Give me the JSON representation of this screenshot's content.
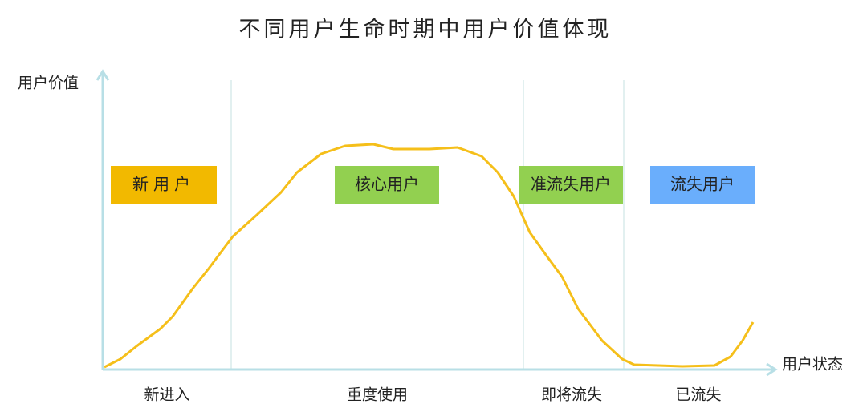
{
  "title": "不同用户生命时期中用户价值体现",
  "y_axis_label": "用户价值",
  "x_axis_label": "用户状态",
  "stages": [
    {
      "label": "新用户",
      "phase": "新进入"
    },
    {
      "label": "核心用户",
      "phase": "重度使用"
    },
    {
      "label": "准流失用户",
      "phase": "即将流失"
    },
    {
      "label": "流失用户",
      "phase": "已流失"
    }
  ]
}
